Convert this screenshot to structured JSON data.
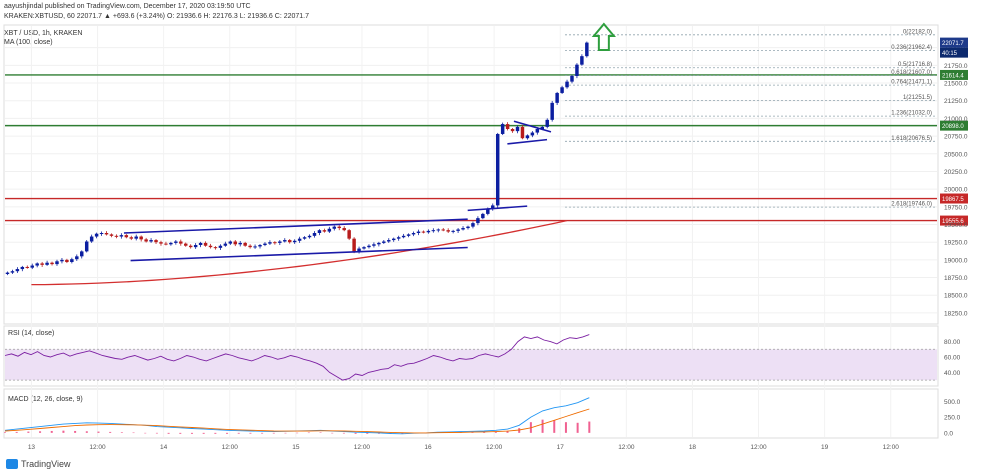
{
  "header": {
    "author_line": "aayushjindal published on TradingView.com, December 17, 2020 03:19:50 UTC",
    "ticker_line": "KRAKEN:XBTUSD, 60  22071.7  ▲ +693.6 (+3.24%)  O: 21936.6  H: 22176.3  L: 21936.6  C: 22071.7",
    "symbol": "XBT / USD, 1h, KRAKEN",
    "ma_label": "MA (100, close)"
  },
  "brand": "TradingView",
  "colors": {
    "up": "#0b1ea0",
    "down": "#b71c1c",
    "ma": "#d32f2f",
    "trendline": "#1a1aa8",
    "green_level": "#2e7d32",
    "red_level": "#c62828",
    "arrow": "#2e9e3e",
    "rsi_line": "#7b1fa2",
    "macd_line": "#2196f3",
    "signal_line": "#ef6c00",
    "hist": "#e91e63"
  },
  "chart_data": [
    {
      "type": "candlestick",
      "title": "XBT / USD, 1h, KRAKEN",
      "y_ticks": [
        "22000.0",
        "21750.0",
        "21500.0",
        "21250.0",
        "21000.0",
        "20750.0",
        "20500.0",
        "20250.0",
        "20000.0",
        "19750.0",
        "19500.0",
        "19250.0",
        "19000.0",
        "18750.0",
        "18500.0",
        "18250.0"
      ],
      "y_tick_values": [
        22000,
        21750,
        21500,
        21250,
        21000,
        20750,
        20500,
        20250,
        20000,
        19750,
        19500,
        19250,
        19000,
        18750,
        18500,
        18250
      ],
      "ylim": [
        18150,
        22250
      ],
      "x_ticks": [
        {
          "label": "13",
          "pos": 0.0
        },
        {
          "label": "12:00",
          "pos": 0.5
        },
        {
          "label": "14",
          "pos": 1.0
        },
        {
          "label": "12:00",
          "pos": 1.5
        },
        {
          "label": "15",
          "pos": 2.0
        },
        {
          "label": "12:00",
          "pos": 2.5
        },
        {
          "label": "16",
          "pos": 3.0
        },
        {
          "label": "12:00",
          "pos": 3.5
        },
        {
          "label": "17",
          "pos": 4.0
        },
        {
          "label": "12:00",
          "pos": 4.5
        },
        {
          "label": "18",
          "pos": 5.0
        },
        {
          "label": "12:00",
          "pos": 5.5
        },
        {
          "label": "19",
          "pos": 6.0
        },
        {
          "label": "12:00",
          "pos": 6.5
        }
      ],
      "x_start_day": -0.2,
      "x_end_day": 6.85,
      "close_series": [
        18820,
        18840,
        18870,
        18900,
        18890,
        18920,
        18950,
        18930,
        18960,
        18940,
        18980,
        19000,
        18970,
        19010,
        19050,
        19120,
        19260,
        19330,
        19370,
        19380,
        19360,
        19340,
        19330,
        19350,
        19320,
        19300,
        19330,
        19290,
        19260,
        19280,
        19250,
        19230,
        19220,
        19240,
        19260,
        19230,
        19200,
        19180,
        19210,
        19240,
        19200,
        19180,
        19170,
        19200,
        19230,
        19260,
        19220,
        19240,
        19200,
        19180,
        19190,
        19210,
        19230,
        19250,
        19240,
        19260,
        19280,
        19250,
        19270,
        19300,
        19320,
        19340,
        19380,
        19420,
        19400,
        19440,
        19470,
        19450,
        19420,
        19300,
        19120,
        19160,
        19180,
        19200,
        19220,
        19240,
        19260,
        19280,
        19300,
        19320,
        19340,
        19360,
        19380,
        19400,
        19390,
        19410,
        19420,
        19430,
        19420,
        19400,
        19410,
        19430,
        19450,
        19470,
        19520,
        19590,
        19650,
        19720,
        19770,
        20780,
        20920,
        20850,
        20820,
        20880,
        20720,
        20760,
        20800,
        20850,
        20880,
        20980,
        21220,
        21360,
        21440,
        21520,
        21600,
        21760,
        21880,
        22071.7
      ],
      "moving_average": {
        "label": "MA (100, close)",
        "start": 18650,
        "end": 19555
      },
      "levels": [
        {
          "label": "19867.5",
          "value": 19867.5,
          "color": "red"
        },
        {
          "label": "19555.6",
          "value": 19555.6,
          "color": "red"
        },
        {
          "label": "20898.0",
          "value": 20898.0,
          "color": "green"
        },
        {
          "label": "21614.4",
          "value": 21614.4,
          "color": "green"
        }
      ],
      "price_labels": [
        {
          "label": "22071.7",
          "value": 22071.7
        },
        {
          "label": "40:15",
          "value": 21930
        }
      ],
      "fibonacci": [
        {
          "label": "0(22182.0)",
          "value": 22182.0
        },
        {
          "label": "0.236(21962.4)",
          "value": 21962.4
        },
        {
          "label": "0.5(21716.8)",
          "value": 21716.8
        },
        {
          "label": "0.618(21607.0)",
          "value": 21607.0
        },
        {
          "label": "0.764(21471.1)",
          "value": 21471.1
        },
        {
          "label": "1(21251.5)",
          "value": 21251.5
        },
        {
          "label": "1.236(21032.0)",
          "value": 21032.0
        },
        {
          "label": "1.618(20676.5)",
          "value": 20676.5
        },
        {
          "label": "2.618(19746.0)",
          "value": 19746.0
        }
      ],
      "trendlines": [
        {
          "from": [
            0.7,
            19380
          ],
          "to": [
            3.3,
            19575
          ]
        },
        {
          "from": [
            0.75,
            18990
          ],
          "to": [
            3.3,
            19175
          ]
        },
        {
          "from": [
            3.65,
            20960
          ],
          "to": [
            3.93,
            20810
          ]
        },
        {
          "from": [
            3.6,
            20640
          ],
          "to": [
            3.9,
            20700
          ]
        },
        {
          "from": [
            3.3,
            19700
          ],
          "to": [
            3.75,
            19760
          ]
        }
      ]
    },
    {
      "type": "line",
      "title": "RSI (14, close)",
      "y_ticks": [
        "80.00",
        "60.00",
        "40.00"
      ],
      "y_tick_values": [
        80,
        60,
        40
      ],
      "ylim": [
        25,
        95
      ],
      "band": [
        30,
        70
      ],
      "values": [
        62,
        64,
        61,
        66,
        63,
        67,
        62,
        60,
        63,
        65,
        61,
        64,
        66,
        68,
        65,
        62,
        60,
        58,
        57,
        60,
        62,
        59,
        56,
        58,
        61,
        57,
        55,
        58,
        62,
        60,
        57,
        55,
        58,
        61,
        64,
        62,
        59,
        57,
        55,
        58,
        62,
        60,
        57,
        59,
        62,
        60,
        57,
        55,
        52,
        48,
        40,
        35,
        30,
        32,
        38,
        36,
        40,
        42,
        44,
        45,
        50,
        48,
        51,
        52,
        55,
        58,
        62,
        60,
        57,
        55,
        58,
        57,
        58,
        62,
        64,
        62,
        60,
        64,
        70,
        80,
        86,
        84,
        86,
        82,
        80,
        77,
        82,
        85,
        84,
        86,
        89
      ]
    },
    {
      "type": "line",
      "title": "MACD (12, 26, close, 9)",
      "y_ticks": [
        "500.0",
        "250.0",
        "0.0"
      ],
      "y_tick_values": [
        500,
        250,
        0
      ],
      "ylim": [
        -50,
        650
      ],
      "macd": [
        40,
        60,
        80,
        100,
        120,
        140,
        150,
        160,
        155,
        150,
        140,
        130,
        120,
        100,
        90,
        80,
        70,
        60,
        50,
        40,
        35,
        30,
        25,
        20,
        25,
        30,
        35,
        40,
        30,
        20,
        10,
        5,
        0,
        -10,
        -15,
        -5,
        0,
        10,
        15,
        20,
        25,
        30,
        40,
        60,
        120,
        250,
        350,
        400,
        430,
        480,
        560
      ],
      "signal": [
        30,
        40,
        55,
        70,
        85,
        100,
        115,
        125,
        130,
        132,
        130,
        128,
        122,
        115,
        105,
        95,
        85,
        75,
        65,
        55,
        48,
        42,
        36,
        30,
        28,
        28,
        30,
        32,
        32,
        30,
        25,
        20,
        14,
        8,
        3,
        0,
        0,
        2,
        5,
        8,
        12,
        16,
        20,
        28,
        45,
        80,
        140,
        200,
        260,
        320,
        380
      ],
      "histogram": [
        10,
        15,
        20,
        25,
        30,
        35,
        30,
        25,
        20,
        15,
        10,
        5,
        0,
        -10,
        -15,
        -15,
        -15,
        -15,
        -15,
        -15,
        -13,
        -12,
        -11,
        -10,
        -3,
        2,
        5,
        8,
        -2,
        -10,
        -15,
        -15,
        -14,
        -18,
        -18,
        -5,
        0,
        8,
        10,
        12,
        13,
        14,
        20,
        32,
        75,
        170,
        210,
        200,
        170,
        160,
        180
      ]
    }
  ]
}
